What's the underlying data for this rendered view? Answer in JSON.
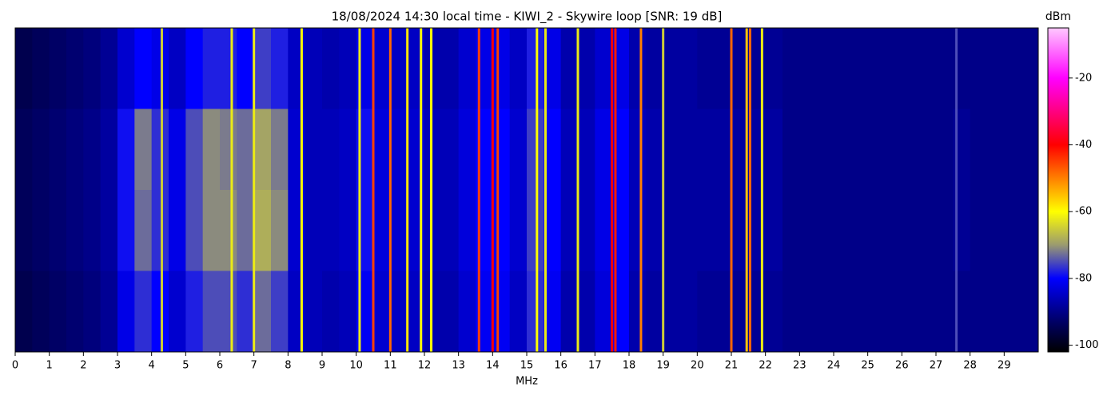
{
  "chart_data": {
    "type": "heatmap",
    "title": "18/08/2024 14:30 local time - KIWI_2 - Skywire loop [SNR: 19 dB]",
    "xlabel": "MHz",
    "colorbar_label": "dBm",
    "xlim": [
      0,
      30
    ],
    "xticks": [
      0,
      1,
      2,
      3,
      4,
      5,
      6,
      7,
      8,
      9,
      10,
      11,
      12,
      13,
      14,
      15,
      16,
      17,
      18,
      19,
      20,
      21,
      22,
      23,
      24,
      25,
      26,
      27,
      28,
      29
    ],
    "clim": [
      -102,
      -5
    ],
    "cticks": [
      -100,
      -80,
      -60,
      -40,
      -20
    ],
    "colormap": [
      {
        "value": -102,
        "color": "#000000"
      },
      {
        "value": -92,
        "color": "#000070"
      },
      {
        "value": -80,
        "color": "#0000ff"
      },
      {
        "value": -70,
        "color": "#9a9a70"
      },
      {
        "value": -60,
        "color": "#ffff00"
      },
      {
        "value": -50,
        "color": "#ff8000"
      },
      {
        "value": -40,
        "color": "#ff0000"
      },
      {
        "value": -30,
        "color": "#ff0080"
      },
      {
        "value": -20,
        "color": "#ff00ff"
      },
      {
        "value": -5,
        "color": "#ffc8ff"
      }
    ],
    "bins": [
      0,
      0.5,
      1,
      1.5,
      2,
      2.5,
      3,
      3.5,
      4,
      4.5,
      5,
      5.5,
      6,
      6.5,
      7,
      7.5,
      8,
      8.5,
      9,
      9.5,
      10,
      10.5,
      11,
      11.5,
      12,
      12.5,
      13,
      13.5,
      14,
      14.5,
      15,
      15.5,
      16,
      16.5,
      17,
      17.5,
      18,
      18.5,
      19,
      19.5,
      20,
      20.5,
      21,
      21.5,
      22,
      22.5,
      23,
      23.5,
      24,
      24.5,
      25,
      25.5,
      26,
      26.5,
      27,
      27.5,
      28,
      28.5,
      29,
      29.5,
      30
    ],
    "values": [
      [
        -95,
        -94,
        -93,
        -92,
        -91,
        -89,
        -84,
        -80,
        -82,
        -85,
        -80,
        -78,
        -78,
        -80,
        -76,
        -78,
        -85,
        -86,
        -87,
        -86,
        -82,
        -84,
        -85,
        -85,
        -87,
        -87,
        -84,
        -82,
        -82,
        -85,
        -78,
        -82,
        -87,
        -87,
        -84,
        -82,
        -87,
        -88,
        -88,
        -88,
        -89,
        -89,
        -89,
        -89,
        -89,
        -90,
        -90,
        -90,
        -90,
        -90,
        -90,
        -90,
        -90,
        -90,
        -90,
        -90,
        -90,
        -90,
        -90,
        -90
      ],
      [
        -94,
        -93,
        -92,
        -91,
        -90,
        -88,
        -79,
        -72,
        -77,
        -82,
        -75,
        -71,
        -72,
        -73,
        -69,
        -72,
        -84,
        -86,
        -86,
        -85,
        -79,
        -83,
        -84,
        -84,
        -86,
        -86,
        -83,
        -80,
        -80,
        -84,
        -76,
        -80,
        -86,
        -86,
        -82,
        -80,
        -86,
        -87,
        -88,
        -88,
        -88,
        -88,
        -88,
        -88,
        -88,
        -90,
        -90,
        -90,
        -90,
        -90,
        -90,
        -90,
        -90,
        -90,
        -90,
        -89,
        -90,
        -90,
        -90,
        -90
      ],
      [
        -94,
        -93,
        -92,
        -91,
        -90,
        -88,
        -79,
        -73,
        -77,
        -82,
        -75,
        -71,
        -71,
        -73,
        -68,
        -71,
        -84,
        -86,
        -86,
        -85,
        -79,
        -83,
        -84,
        -84,
        -86,
        -86,
        -83,
        -80,
        -80,
        -84,
        -76,
        -80,
        -86,
        -86,
        -82,
        -80,
        -86,
        -87,
        -88,
        -88,
        -88,
        -88,
        -88,
        -88,
        -88,
        -90,
        -90,
        -90,
        -90,
        -90,
        -90,
        -90,
        -90,
        -90,
        -90,
        -89,
        -90,
        -90,
        -90,
        -90
      ],
      [
        -95,
        -94,
        -93,
        -92,
        -91,
        -89,
        -82,
        -77,
        -80,
        -84,
        -78,
        -75,
        -75,
        -77,
        -73,
        -76,
        -85,
        -86,
        -87,
        -86,
        -81,
        -84,
        -85,
        -85,
        -87,
        -87,
        -84,
        -81,
        -81,
        -85,
        -77,
        -81,
        -87,
        -87,
        -83,
        -80,
        -87,
        -88,
        -88,
        -88,
        -89,
        -89,
        -89,
        -89,
        -89,
        -90,
        -90,
        -90,
        -90,
        -90,
        -90,
        -90,
        -90,
        -90,
        -90,
        -90,
        -90,
        -90,
        -90,
        -90
      ]
    ],
    "carriers": {
      "x": [
        4.3,
        6.35,
        7.0,
        8.4,
        10.1,
        10.5,
        11.0,
        11.5,
        11.9,
        12.2,
        13.6,
        14.0,
        14.15,
        15.3,
        15.55,
        16.5,
        17.5,
        17.6,
        18.35,
        19.0,
        21.0,
        21.45,
        21.55,
        21.9,
        27.6
      ],
      "values": [
        -65,
        -62,
        -62,
        -60,
        -62,
        -45,
        -48,
        -58,
        -60,
        -60,
        -45,
        -40,
        -45,
        -60,
        -62,
        -62,
        -40,
        -42,
        -50,
        -65,
        -48,
        -55,
        -48,
        -62,
        -75
      ]
    }
  }
}
